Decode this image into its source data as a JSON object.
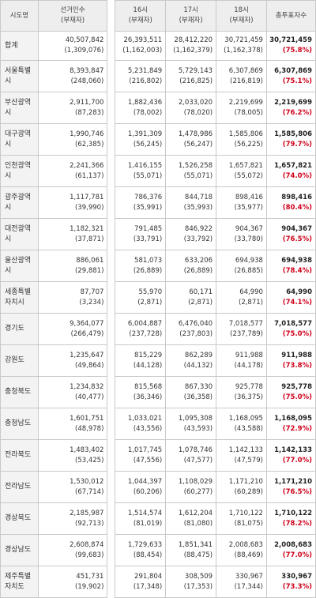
{
  "table": {
    "headers": {
      "region": "시도명",
      "electorate": "선거인수",
      "electorate_sub": "(부재자)",
      "h16": "16시",
      "h16_sub": "(부재자)",
      "h17": "17시",
      "h17_sub": "(부재자)",
      "h18": "18시",
      "h18_sub": "(부재자)",
      "turnout": "총투표자수"
    },
    "rows": [
      {
        "region": "합계",
        "electorate": "40,507,842",
        "electorate_abs": "(1,309,076)",
        "h16": "26,393,511",
        "h16_abs": "(1,162,003)",
        "h17": "28,412,220",
        "h17_abs": "(1,162,379)",
        "h18": "30,721,459",
        "h18_abs": "(1,162,378)",
        "total": "30,721,459",
        "rate": "(75.8%)"
      },
      {
        "region": "서울특별시",
        "electorate": "8,393,847",
        "electorate_abs": "(248,060)",
        "h16": "5,231,849",
        "h16_abs": "(216,802)",
        "h17": "5,729,143",
        "h17_abs": "(216,825)",
        "h18": "6,307,869",
        "h18_abs": "(216,819)",
        "total": "6,307,869",
        "rate": "(75.1%)"
      },
      {
        "region": "부산광역시",
        "electorate": "2,911,700",
        "electorate_abs": "(87,283)",
        "h16": "1,882,436",
        "h16_abs": "(78,002)",
        "h17": "2,033,020",
        "h17_abs": "(78,020)",
        "h18": "2,219,699",
        "h18_abs": "(78,005)",
        "total": "2,219,699",
        "rate": "(76.2%)"
      },
      {
        "region": "대구광역시",
        "electorate": "1,990,746",
        "electorate_abs": "(62,385)",
        "h16": "1,391,309",
        "h16_abs": "(56,245)",
        "h17": "1,478,986",
        "h17_abs": "(56,247)",
        "h18": "1,585,806",
        "h18_abs": "(56,225)",
        "total": "1,585,806",
        "rate": "(79.7%)"
      },
      {
        "region": "인천광역시",
        "electorate": "2,241,366",
        "electorate_abs": "(61,137)",
        "h16": "1,416,155",
        "h16_abs": "(55,071)",
        "h17": "1,526,258",
        "h17_abs": "(55,071)",
        "h18": "1,657,821",
        "h18_abs": "(55,072)",
        "total": "1,657,821",
        "rate": "(74.0%)"
      },
      {
        "region": "광주광역시",
        "electorate": "1,117,781",
        "electorate_abs": "(39,990)",
        "h16": "786,376",
        "h16_abs": "(35,991)",
        "h17": "844,718",
        "h17_abs": "(35,993)",
        "h18": "898,416",
        "h18_abs": "(35,977)",
        "total": "898,416",
        "rate": "(80.4%)"
      },
      {
        "region": "대전광역시",
        "electorate": "1,182,321",
        "electorate_abs": "(37,871)",
        "h16": "791,485",
        "h16_abs": "(33,791)",
        "h17": "846,922",
        "h17_abs": "(33,792)",
        "h18": "904,367",
        "h18_abs": "(33,780)",
        "total": "904,367",
        "rate": "(76.5%)"
      },
      {
        "region": "울산광역시",
        "electorate": "886,061",
        "electorate_abs": "(29,881)",
        "h16": "581,073",
        "h16_abs": "(26,889)",
        "h17": "633,206",
        "h17_abs": "(26,889)",
        "h18": "694,938",
        "h18_abs": "(26,885)",
        "total": "694,938",
        "rate": "(78.4%)"
      },
      {
        "region": "세종특별자치시",
        "electorate": "87,707",
        "electorate_abs": "(3,234)",
        "h16": "55,970",
        "h16_abs": "(2,871)",
        "h17": "60,171",
        "h17_abs": "(2,871)",
        "h18": "64,990",
        "h18_abs": "(2,871)",
        "total": "64,990",
        "rate": "(74.1%)"
      },
      {
        "region": "경기도",
        "electorate": "9,364,077",
        "electorate_abs": "(266,479)",
        "h16": "6,004,887",
        "h16_abs": "(237,728)",
        "h17": "6,476,040",
        "h17_abs": "(237,803)",
        "h18": "7,018,577",
        "h18_abs": "(237,789)",
        "total": "7,018,577",
        "rate": "(75.0%)"
      },
      {
        "region": "강원도",
        "electorate": "1,235,647",
        "electorate_abs": "(49,864)",
        "h16": "815,229",
        "h16_abs": "(44,128)",
        "h17": "862,289",
        "h17_abs": "(44,132)",
        "h18": "911,988",
        "h18_abs": "(44,178)",
        "total": "911,988",
        "rate": "(73.8%)"
      },
      {
        "region": "충청북도",
        "electorate": "1,234,832",
        "electorate_abs": "(40,477)",
        "h16": "815,568",
        "h16_abs": "(36,346)",
        "h17": "867,330",
        "h17_abs": "(36,358)",
        "h18": "925,778",
        "h18_abs": "(36,375)",
        "total": "925,778",
        "rate": "(75.0%)"
      },
      {
        "region": "충청남도",
        "electorate": "1,601,751",
        "electorate_abs": "(48,978)",
        "h16": "1,033,021",
        "h16_abs": "(43,556)",
        "h17": "1,095,308",
        "h17_abs": "(43,593)",
        "h18": "1,168,095",
        "h18_abs": "(43,588)",
        "total": "1,168,095",
        "rate": "(72.9%)"
      },
      {
        "region": "전라북도",
        "electorate": "1,483,402",
        "electorate_abs": "(53,425)",
        "h16": "1,017,745",
        "h16_abs": "(47,556)",
        "h17": "1,078,746",
        "h17_abs": "(47,577)",
        "h18": "1,142,133",
        "h18_abs": "(47,579)",
        "total": "1,142,133",
        "rate": "(77.0%)"
      },
      {
        "region": "전라남도",
        "electorate": "1,530,012",
        "electorate_abs": "(67,714)",
        "h16": "1,044,397",
        "h16_abs": "(60,206)",
        "h17": "1,108,029",
        "h17_abs": "(60,277)",
        "h18": "1,171,210",
        "h18_abs": "(60,289)",
        "total": "1,171,210",
        "rate": "(76.5%)"
      },
      {
        "region": "경상북도",
        "electorate": "2,185,987",
        "electorate_abs": "(92,713)",
        "h16": "1,514,574",
        "h16_abs": "(81,019)",
        "h17": "1,612,204",
        "h17_abs": "(81,080)",
        "h18": "1,710,122",
        "h18_abs": "(81,075)",
        "total": "1,710,122",
        "rate": "(78.2%)"
      },
      {
        "region": "경상남도",
        "electorate": "2,608,874",
        "electorate_abs": "(99,683)",
        "h16": "1,729,633",
        "h16_abs": "(88,454)",
        "h17": "1,851,341",
        "h17_abs": "(88,475)",
        "h18": "2,008,683",
        "h18_abs": "(88,469)",
        "total": "2,008,683",
        "rate": "(77.0%)"
      },
      {
        "region": "제주특별자치도",
        "electorate": "451,731",
        "electorate_abs": "(19,902)",
        "h16": "291,804",
        "h16_abs": "(17,348)",
        "h17": "308,509",
        "h17_abs": "(17,353)",
        "h18": "330,967",
        "h18_abs": "(17,344)",
        "total": "330,967",
        "rate": "(73.3%)"
      }
    ]
  }
}
